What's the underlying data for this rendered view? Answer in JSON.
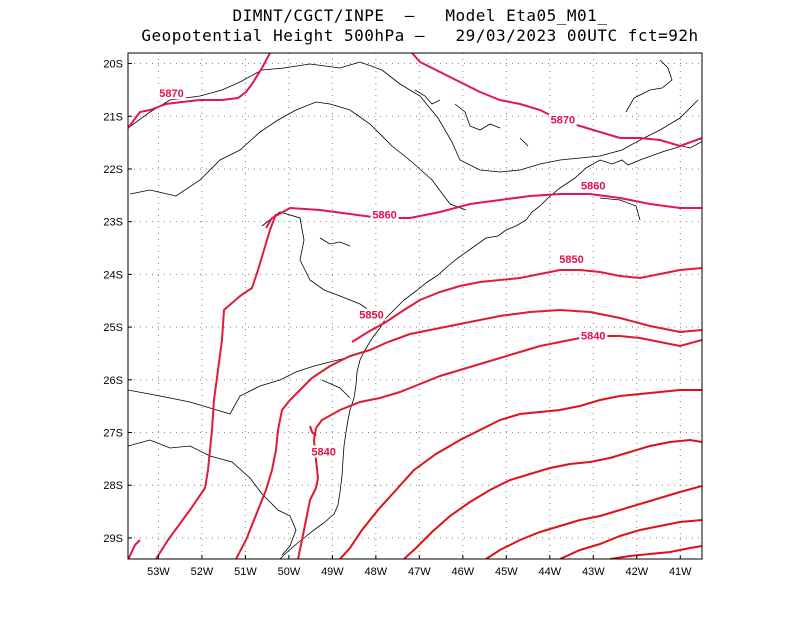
{
  "title": {
    "line1": "DIMNT/CGCT/INPE  —   Model Eta05_M01_",
    "line2": "Geopotential Height 500hPa —   29/03/2023 00UTC fct=92h"
  },
  "axes": {
    "lat_labels": [
      "20S",
      "21S",
      "22S",
      "23S",
      "24S",
      "25S",
      "26S",
      "27S",
      "28S",
      "29S"
    ],
    "lon_labels": [
      "53W",
      "52W",
      "51W",
      "50W",
      "49W",
      "48W",
      "47W",
      "46W",
      "45W",
      "44W",
      "43W",
      "42W",
      "41W"
    ],
    "lon_range": [
      -53.7,
      -40.5
    ],
    "lat_range": [
      -29.4,
      -19.8
    ],
    "grid": true
  },
  "contour_labels": [
    {
      "text": "5870",
      "lon": -52.7,
      "lat": -20.6
    },
    {
      "text": "5870",
      "lon": -43.7,
      "lat": -21.1
    },
    {
      "text": "5860",
      "lon": -43.0,
      "lat": -22.35
    },
    {
      "text": "5860",
      "lon": -47.8,
      "lat": -22.9
    },
    {
      "text": "5850",
      "lon": -43.5,
      "lat": -23.75
    },
    {
      "text": "5850",
      "lon": -48.1,
      "lat": -24.8
    },
    {
      "text": "5840",
      "lon": -43.0,
      "lat": -25.2
    },
    {
      "text": "5840",
      "lon": -49.2,
      "lat": -27.4
    }
  ],
  "colors": {
    "contour_5870": "#e0184e",
    "contour_5860": "#e0184e",
    "contour_5850": "#e01a40",
    "contour_5840": "#e01a30",
    "contour_low": "#e0101a",
    "coast": "#000000",
    "grid": "#808080"
  }
}
